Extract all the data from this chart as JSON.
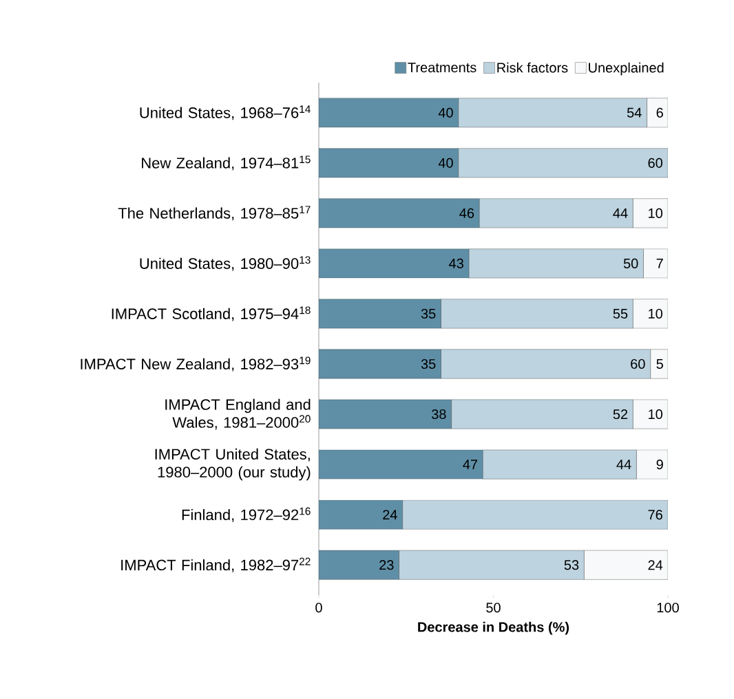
{
  "chart_data": {
    "type": "bar",
    "orientation": "horizontal",
    "stacked": true,
    "xlabel": "**Decrease in Deaths (%)**",
    "categories": [
      "United States, 1968–76$^{14}$",
      "New Zealand, 1974–81$^{15}$",
      "The Netherlands, 1978–85$^{17}$",
      "United States, 1980–90$^{13}$",
      "IMPACT Scotland, 1975–94$^{18}$",
      "IMPACT New Zealand, 1982–93$^{19}$",
      "IMPACT England and Wales, 1981–2000$^{20}$",
      "IMPACT United States, 1980–2000 (our study)",
      "Finland, 1972–92$^{16}$",
      "IMPACT Finland, 1982–97$^{22}$"
    ],
    "series": [
      {
        "name": "Treatments",
        "color": "#5f8fa6",
        "values": [
          40,
          40,
          46,
          43,
          35,
          35,
          38,
          47,
          24,
          23
        ]
      },
      {
        "name": "Risk factors",
        "color": "#bdd3df",
        "values": [
          54,
          60,
          44,
          50,
          55,
          60,
          52,
          44,
          76,
          53
        ]
      },
      {
        "name": "Unexplained",
        "color": "#f7f9fa",
        "values": [
          6,
          null,
          10,
          7,
          10,
          5,
          10,
          9,
          null,
          24
        ]
      }
    ],
    "xlim": [
      0,
      100
    ],
    "xticks": [
      0,
      50,
      100
    ],
    "data_labels": true,
    "legend": "top right",
    "grid": false
  }
}
